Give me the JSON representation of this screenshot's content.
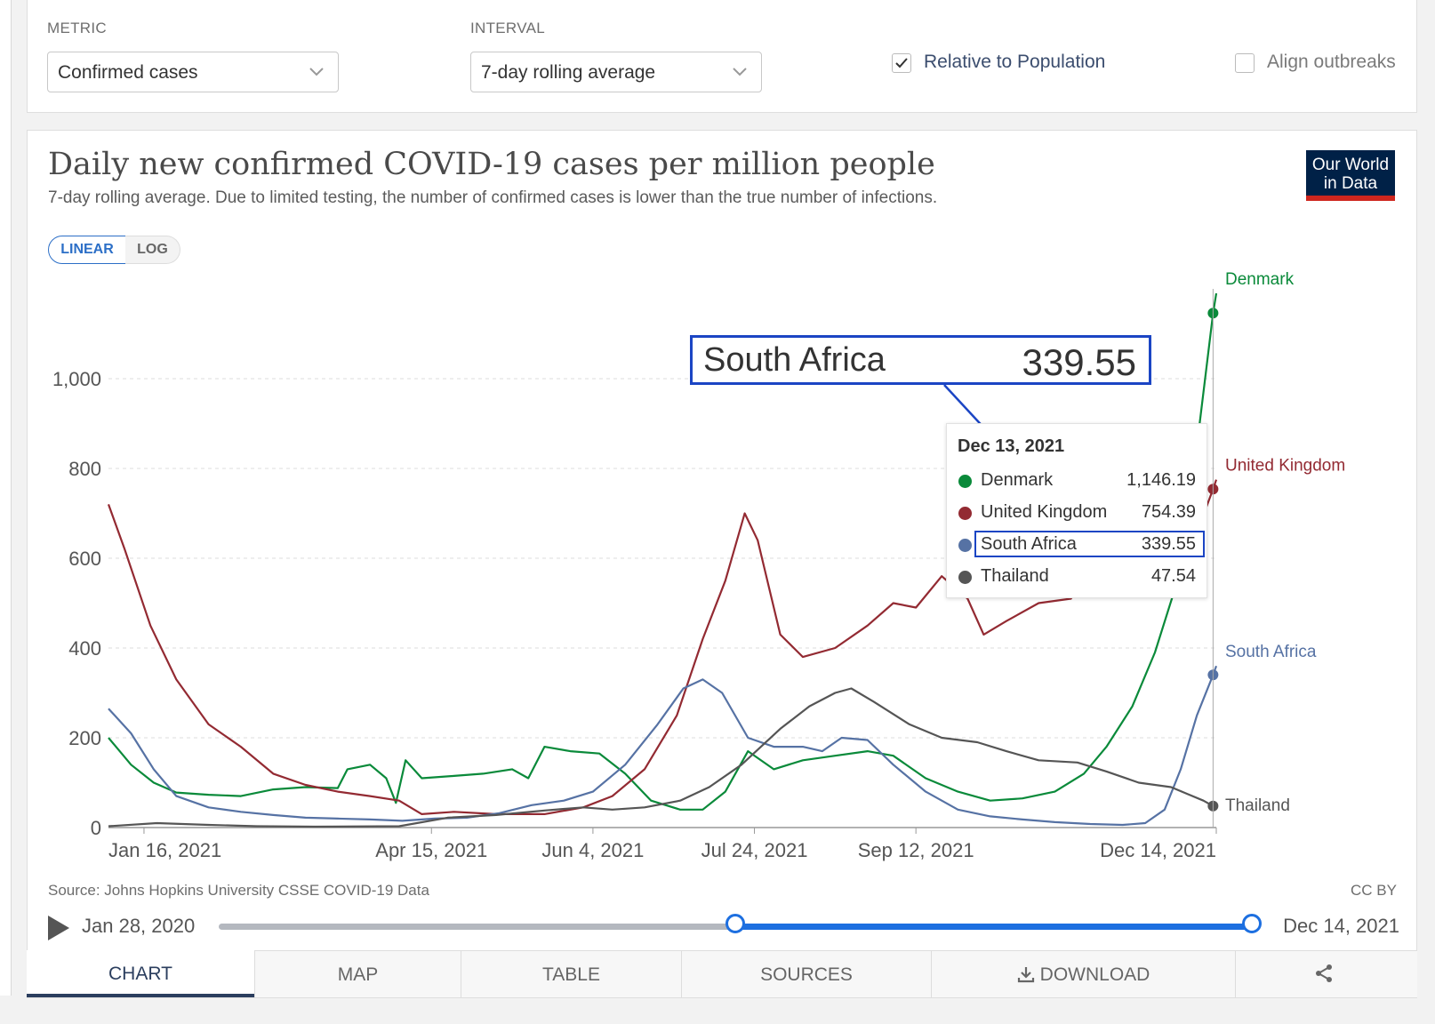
{
  "controls": {
    "metric_label": "METRIC",
    "metric_value": "Confirmed cases",
    "interval_label": "INTERVAL",
    "interval_value": "7-day rolling average",
    "relative_label": "Relative to Population",
    "relative_checked": true,
    "align_label": "Align outbreaks",
    "align_checked": false
  },
  "logo": {
    "line1": "Our World",
    "line2": "in Data"
  },
  "scale": {
    "linear": "LINEAR",
    "log": "LOG",
    "active": "linear"
  },
  "tooltip": {
    "date": "Dec 13, 2021",
    "rows": [
      {
        "name": "Denmark",
        "value": "1,146.19",
        "color": "#0a8a3a"
      },
      {
        "name": "United Kingdom",
        "value": "754.39",
        "color": "#932a32"
      },
      {
        "name": "South Africa",
        "value": "339.55",
        "color": "#5672a4",
        "highlighted": true
      },
      {
        "name": "Thailand",
        "value": "47.54",
        "color": "#555555"
      }
    ]
  },
  "callout": {
    "name": "South Africa",
    "value": "339.55"
  },
  "footer": {
    "source": "Source: Johns Hopkins University CSSE COVID-19 Data",
    "license": "CC BY"
  },
  "timeline": {
    "start": "Jan 28, 2020",
    "end": "Dec 14, 2021",
    "selected_start_fraction": 0.5,
    "selected_end_fraction": 1.0
  },
  "tabs": {
    "chart": "CHART",
    "map": "MAP",
    "table": "TABLE",
    "sources": "SOURCES",
    "download": "DOWNLOAD",
    "active": "chart"
  },
  "chart_data": {
    "type": "line",
    "title": "Daily new confirmed COVID-19 cases per million people",
    "subtitle": "7-day rolling average. Due to limited testing, the number of confirmed cases is lower than the true number of infections.",
    "xlabel": "",
    "ylabel": "",
    "x_start": "2021-01-05",
    "x_end": "2021-12-14",
    "ylim": [
      0,
      1200
    ],
    "yticks": [
      0,
      200,
      400,
      600,
      800,
      1000
    ],
    "ytick_labels": [
      "0",
      "200",
      "400",
      "600",
      "800",
      "1,000"
    ],
    "xticks": [
      "2021-01-16",
      "2021-04-15",
      "2021-06-04",
      "2021-07-24",
      "2021-09-12",
      "2021-12-14"
    ],
    "xtick_labels": [
      "Jan 16, 2021",
      "Apr 15, 2021",
      "Jun 4, 2021",
      "Jul 24, 2021",
      "Sep 12, 2021",
      "Dec 14, 2021"
    ],
    "grid": true,
    "series": [
      {
        "name": "Denmark",
        "color": "#0a8a3a",
        "points": [
          [
            "2021-01-05",
            200
          ],
          [
            "2021-01-12",
            140
          ],
          [
            "2021-01-19",
            100
          ],
          [
            "2021-01-26",
            78
          ],
          [
            "2021-02-05",
            73
          ],
          [
            "2021-02-15",
            70
          ],
          [
            "2021-02-25",
            85
          ],
          [
            "2021-03-07",
            90
          ],
          [
            "2021-03-17",
            88
          ],
          [
            "2021-03-20",
            130
          ],
          [
            "2021-03-27",
            140
          ],
          [
            "2021-04-01",
            110
          ],
          [
            "2021-04-04",
            55
          ],
          [
            "2021-04-07",
            150
          ],
          [
            "2021-04-12",
            110
          ],
          [
            "2021-04-22",
            115
          ],
          [
            "2021-05-01",
            120
          ],
          [
            "2021-05-10",
            130
          ],
          [
            "2021-05-15",
            110
          ],
          [
            "2021-05-20",
            180
          ],
          [
            "2021-05-28",
            170
          ],
          [
            "2021-06-06",
            165
          ],
          [
            "2021-06-14",
            120
          ],
          [
            "2021-06-22",
            60
          ],
          [
            "2021-07-01",
            40
          ],
          [
            "2021-07-08",
            40
          ],
          [
            "2021-07-15",
            80
          ],
          [
            "2021-07-22",
            170
          ],
          [
            "2021-07-30",
            130
          ],
          [
            "2021-08-08",
            150
          ],
          [
            "2021-08-18",
            160
          ],
          [
            "2021-08-28",
            170
          ],
          [
            "2021-09-05",
            160
          ],
          [
            "2021-09-15",
            110
          ],
          [
            "2021-09-25",
            80
          ],
          [
            "2021-10-05",
            60
          ],
          [
            "2021-10-15",
            65
          ],
          [
            "2021-10-25",
            80
          ],
          [
            "2021-11-03",
            120
          ],
          [
            "2021-11-10",
            180
          ],
          [
            "2021-11-18",
            270
          ],
          [
            "2021-11-25",
            390
          ],
          [
            "2021-12-02",
            550
          ],
          [
            "2021-12-08",
            850
          ],
          [
            "2021-12-13",
            1146
          ],
          [
            "2021-12-14",
            1190
          ]
        ]
      },
      {
        "name": "United Kingdom",
        "color": "#932a32",
        "points": [
          [
            "2021-01-05",
            720
          ],
          [
            "2021-01-10",
            620
          ],
          [
            "2021-01-18",
            450
          ],
          [
            "2021-01-26",
            330
          ],
          [
            "2021-02-05",
            230
          ],
          [
            "2021-02-15",
            180
          ],
          [
            "2021-02-25",
            120
          ],
          [
            "2021-03-07",
            95
          ],
          [
            "2021-03-17",
            80
          ],
          [
            "2021-03-27",
            70
          ],
          [
            "2021-04-05",
            60
          ],
          [
            "2021-04-12",
            30
          ],
          [
            "2021-04-22",
            35
          ],
          [
            "2021-05-05",
            30
          ],
          [
            "2021-05-20",
            30
          ],
          [
            "2021-06-01",
            45
          ],
          [
            "2021-06-10",
            70
          ],
          [
            "2021-06-20",
            130
          ],
          [
            "2021-06-30",
            250
          ],
          [
            "2021-07-08",
            420
          ],
          [
            "2021-07-15",
            550
          ],
          [
            "2021-07-21",
            700
          ],
          [
            "2021-07-25",
            640
          ],
          [
            "2021-08-01",
            430
          ],
          [
            "2021-08-08",
            380
          ],
          [
            "2021-08-18",
            400
          ],
          [
            "2021-08-28",
            450
          ],
          [
            "2021-09-05",
            500
          ],
          [
            "2021-09-12",
            490
          ],
          [
            "2021-09-20",
            560
          ],
          [
            "2021-09-28",
            510
          ],
          [
            "2021-10-03",
            430
          ],
          [
            "2021-10-10",
            460
          ],
          [
            "2021-10-20",
            500
          ],
          [
            "2021-10-30",
            510
          ],
          [
            "2021-11-05",
            580
          ],
          [
            "2021-11-10",
            550
          ],
          [
            "2021-11-20",
            520
          ],
          [
            "2021-11-28",
            540
          ],
          [
            "2021-12-05",
            600
          ],
          [
            "2021-12-13",
            754
          ],
          [
            "2021-12-14",
            775
          ]
        ]
      },
      {
        "name": "South Africa",
        "color": "#5672a4",
        "points": [
          [
            "2021-01-05",
            265
          ],
          [
            "2021-01-12",
            210
          ],
          [
            "2021-01-19",
            130
          ],
          [
            "2021-01-26",
            70
          ],
          [
            "2021-02-05",
            45
          ],
          [
            "2021-02-15",
            35
          ],
          [
            "2021-02-25",
            28
          ],
          [
            "2021-03-07",
            22
          ],
          [
            "2021-03-17",
            20
          ],
          [
            "2021-03-27",
            18
          ],
          [
            "2021-04-06",
            15
          ],
          [
            "2021-04-16",
            20
          ],
          [
            "2021-04-26",
            22
          ],
          [
            "2021-05-06",
            32
          ],
          [
            "2021-05-16",
            50
          ],
          [
            "2021-05-26",
            60
          ],
          [
            "2021-06-04",
            80
          ],
          [
            "2021-06-14",
            140
          ],
          [
            "2021-06-24",
            230
          ],
          [
            "2021-07-02",
            310
          ],
          [
            "2021-07-08",
            330
          ],
          [
            "2021-07-14",
            300
          ],
          [
            "2021-07-22",
            200
          ],
          [
            "2021-07-30",
            180
          ],
          [
            "2021-08-08",
            180
          ],
          [
            "2021-08-14",
            170
          ],
          [
            "2021-08-20",
            200
          ],
          [
            "2021-08-28",
            195
          ],
          [
            "2021-09-05",
            140
          ],
          [
            "2021-09-15",
            80
          ],
          [
            "2021-09-25",
            40
          ],
          [
            "2021-10-05",
            25
          ],
          [
            "2021-10-15",
            18
          ],
          [
            "2021-10-25",
            12
          ],
          [
            "2021-11-05",
            8
          ],
          [
            "2021-11-15",
            6
          ],
          [
            "2021-11-22",
            10
          ],
          [
            "2021-11-28",
            40
          ],
          [
            "2021-12-03",
            130
          ],
          [
            "2021-12-08",
            250
          ],
          [
            "2021-12-13",
            340
          ],
          [
            "2021-12-14",
            360
          ]
        ]
      },
      {
        "name": "Thailand",
        "color": "#555555",
        "points": [
          [
            "2021-01-05",
            3
          ],
          [
            "2021-01-20",
            10
          ],
          [
            "2021-02-05",
            6
          ],
          [
            "2021-02-20",
            3
          ],
          [
            "2021-03-10",
            2
          ],
          [
            "2021-04-05",
            3
          ],
          [
            "2021-04-20",
            22
          ],
          [
            "2021-05-05",
            28
          ],
          [
            "2021-05-20",
            38
          ],
          [
            "2021-06-01",
            45
          ],
          [
            "2021-06-10",
            40
          ],
          [
            "2021-06-20",
            45
          ],
          [
            "2021-07-01",
            60
          ],
          [
            "2021-07-10",
            90
          ],
          [
            "2021-07-20",
            140
          ],
          [
            "2021-08-01",
            220
          ],
          [
            "2021-08-10",
            270
          ],
          [
            "2021-08-18",
            300
          ],
          [
            "2021-08-23",
            310
          ],
          [
            "2021-08-30",
            280
          ],
          [
            "2021-09-10",
            230
          ],
          [
            "2021-09-20",
            200
          ],
          [
            "2021-10-01",
            190
          ],
          [
            "2021-10-10",
            170
          ],
          [
            "2021-10-20",
            150
          ],
          [
            "2021-11-01",
            145
          ],
          [
            "2021-11-10",
            125
          ],
          [
            "2021-11-20",
            100
          ],
          [
            "2021-11-30",
            90
          ],
          [
            "2021-12-05",
            75
          ],
          [
            "2021-12-10",
            60
          ],
          [
            "2021-12-13",
            48
          ],
          [
            "2021-12-14",
            46
          ]
        ]
      }
    ]
  }
}
